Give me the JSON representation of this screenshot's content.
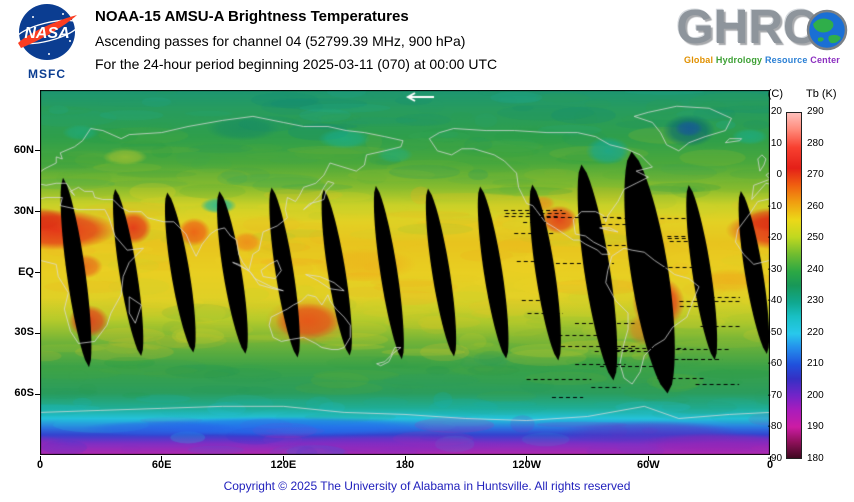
{
  "header": {
    "nasa": {
      "wordmark": "NASA",
      "msfc": "MSFC"
    },
    "title": "NOAA-15 AMSU-A Brightness Temperatures",
    "subtitle_channel": "Ascending passes for channel 04 (52799.39 MHz, 900 hPa)",
    "subtitle_period": "For the 24-hour period beginning 2025-03-11 (070) at 00:00 UTC",
    "ghrc": {
      "wordmark": "GHRC",
      "tagline": [
        "Global",
        "Hydrology",
        "Resource",
        "Center"
      ],
      "tagline_colors": [
        "#e09000",
        "#3da034",
        "#2a7fd4",
        "#8c2fc0"
      ]
    }
  },
  "colors": {
    "nasa_blue": "#0b3d91",
    "nasa_red": "#fc3d21",
    "ghrc_gray": "#8e959c",
    "footer_text": "#2121bd"
  },
  "map_axes": {
    "lat_ticks": [
      {
        "label": "60N",
        "lat": 60
      },
      {
        "label": "30N",
        "lat": 30
      },
      {
        "label": "EQ",
        "lat": 0
      },
      {
        "label": "30S",
        "lat": -30
      },
      {
        "label": "60S",
        "lat": -60
      }
    ],
    "lon_ticks": [
      {
        "label": "0",
        "deg": 0
      },
      {
        "label": "60E",
        "deg": 60
      },
      {
        "label": "120E",
        "deg": 120
      },
      {
        "label": "180",
        "deg": 180
      },
      {
        "label": "120W",
        "deg": 240
      },
      {
        "label": "60W",
        "deg": 300
      },
      {
        "label": "0",
        "deg": 360
      }
    ]
  },
  "colorbar": {
    "header_left": "(C)",
    "header_right": "Tb (K)",
    "celsius": [
      "20",
      "10",
      "0",
      "-10",
      "-20",
      "-30",
      "-40",
      "-50",
      "-60",
      "-70",
      "-80",
      "-90"
    ],
    "kelvin": [
      "290",
      "280",
      "270",
      "260",
      "250",
      "240",
      "230",
      "220",
      "210",
      "200",
      "190",
      "180"
    ],
    "stops": [
      {
        "t": 0.0,
        "c": "#ffc0bc"
      },
      {
        "t": 0.05,
        "c": "#ff8878"
      },
      {
        "t": 0.1,
        "c": "#f84030"
      },
      {
        "t": 0.16,
        "c": "#e42018"
      },
      {
        "t": 0.21,
        "c": "#f06010"
      },
      {
        "t": 0.26,
        "c": "#f0a010"
      },
      {
        "t": 0.31,
        "c": "#ecd818"
      },
      {
        "t": 0.36,
        "c": "#c0d820"
      },
      {
        "t": 0.41,
        "c": "#70bc30"
      },
      {
        "t": 0.46,
        "c": "#2ca844"
      },
      {
        "t": 0.5,
        "c": "#189858"
      },
      {
        "t": 0.55,
        "c": "#10a890"
      },
      {
        "t": 0.59,
        "c": "#18c0c4"
      },
      {
        "t": 0.64,
        "c": "#28c8ec"
      },
      {
        "t": 0.68,
        "c": "#2490ec"
      },
      {
        "t": 0.73,
        "c": "#2050dc"
      },
      {
        "t": 0.77,
        "c": "#3430c4"
      },
      {
        "t": 0.82,
        "c": "#7424c8"
      },
      {
        "t": 0.86,
        "c": "#a81cbc"
      },
      {
        "t": 0.91,
        "c": "#cc1ca4"
      },
      {
        "t": 0.955,
        "c": "#8c1058"
      },
      {
        "t": 1.0,
        "c": "#400820"
      }
    ]
  },
  "footer": "Copyright © 2025 The University of Alabama in Huntsville.  All rights reserved",
  "chart_data": {
    "type": "heatmap",
    "title": "NOAA-15 AMSU-A Brightness Temperatures",
    "subtitle": "Ascending passes for channel 04 (52799.39 MHz, 900 hPa)",
    "period": "24-hour period beginning 2025-03-11 (070) at 00:00 UTC",
    "projection": "equirectangular world map, longitude 0 eastward through 180 back to 0, latitude 90N to 90S",
    "x_ticks": [
      "0",
      "60E",
      "120E",
      "180",
      "120W",
      "60W",
      "0"
    ],
    "y_ticks": [
      "60N",
      "30N",
      "EQ",
      "30S",
      "60S"
    ],
    "value_scale": {
      "units_left": "C",
      "units_right": "Tb (K)",
      "celsius_range": [
        -90,
        20
      ],
      "kelvin_range": [
        180,
        290
      ],
      "tick_step_kelvin": 10
    },
    "legend_position": "right",
    "grid": false,
    "features": "14 ascending polar-orbit swaths with black gore-shaped data gaps between about 40N and 40S; warm brightness temperatures (270-290 K, red) over tropical land (Africa, Arabia, India, Australia, South America, Mexico); 255-265 K (yellow) tropical oceans; 240-250 K (green) midlatitudes; cold teal patches over Tibet, Hudson Bay and Greenland; 180-220 K (cyan-blue-purple-magenta) Antarctic band; dashed black scan-line artifacts and overlapping wide gaps near 60W; small white left-pointing arrow at top center of map"
  }
}
